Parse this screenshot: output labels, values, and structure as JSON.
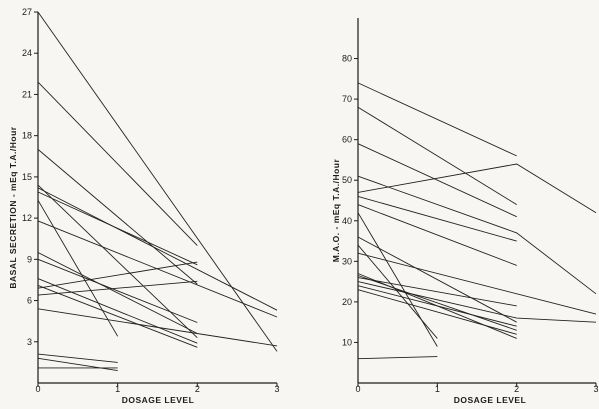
{
  "colors": {
    "background": "#f7f6f2",
    "ink": "#1c1c1c"
  },
  "chart_data": [
    {
      "type": "line",
      "xlabel": "DOSAGE    LEVEL",
      "ylabel": "BASAL  SECRETION  -  mEq T.A./Hour",
      "xlim": [
        0,
        3
      ],
      "ylim": [
        0,
        27
      ],
      "x_ticks": [
        "0",
        "1",
        "2",
        "3"
      ],
      "y_ticks": [
        "3",
        "6",
        "9",
        "12",
        "15",
        "18",
        "21",
        "24",
        "27"
      ],
      "grid": false,
      "series": [
        {
          "x": [
            0,
            3
          ],
          "y": [
            27,
            2.3
          ]
        },
        {
          "x": [
            0,
            2
          ],
          "y": [
            21.9,
            10
          ]
        },
        {
          "x": [
            0,
            2
          ],
          "y": [
            17,
            7.2
          ]
        },
        {
          "x": [
            0,
            2
          ],
          "y": [
            14.4,
            3.3
          ]
        },
        {
          "x": [
            0,
            3
          ],
          "y": [
            14.2,
            5.3
          ]
        },
        {
          "x": [
            0,
            2
          ],
          "y": [
            13.9,
            8.6
          ]
        },
        {
          "x": [
            0,
            1
          ],
          "y": [
            13.3,
            3.4
          ]
        },
        {
          "x": [
            0,
            3
          ],
          "y": [
            11.8,
            4.8
          ]
        },
        {
          "x": [
            0,
            2
          ],
          "y": [
            9.5,
            3.6
          ]
        },
        {
          "x": [
            0,
            2
          ],
          "y": [
            9,
            4.4
          ]
        },
        {
          "x": [
            0,
            2
          ],
          "y": [
            7.6,
            2.9
          ]
        },
        {
          "x": [
            0,
            2
          ],
          "y": [
            6.9,
            8.8
          ]
        },
        {
          "x": [
            0,
            2
          ],
          "y": [
            6.4,
            7.4
          ]
        },
        {
          "x": [
            0,
            2
          ],
          "y": [
            7.1,
            2.6
          ]
        },
        {
          "x": [
            0,
            3
          ],
          "y": [
            5.4,
            2.7
          ]
        },
        {
          "x": [
            0,
            1
          ],
          "y": [
            2.1,
            1.5
          ]
        },
        {
          "x": [
            0,
            1
          ],
          "y": [
            1.8,
            0.9
          ]
        },
        {
          "x": [
            0,
            1
          ],
          "y": [
            1.1,
            1.1
          ]
        }
      ]
    },
    {
      "type": "line",
      "xlabel": "DOSAGE    LEVEL",
      "ylabel": "M.A.O.  -  mEq T.A./Hour",
      "xlim": [
        0,
        3
      ],
      "ylim": [
        0,
        90
      ],
      "x_ticks": [
        "0",
        "1",
        "2",
        "3"
      ],
      "y_ticks": [
        "10",
        "20",
        "30",
        "40",
        "50",
        "60",
        "70",
        "80"
      ],
      "grid": false,
      "series": [
        {
          "x": [
            0,
            2
          ],
          "y": [
            74,
            56
          ]
        },
        {
          "x": [
            0,
            2
          ],
          "y": [
            68,
            44
          ]
        },
        {
          "x": [
            0,
            2
          ],
          "y": [
            59,
            41
          ]
        },
        {
          "x": [
            0,
            2,
            3
          ],
          "y": [
            47,
            54,
            42
          ]
        },
        {
          "x": [
            0,
            2,
            3
          ],
          "y": [
            51,
            37,
            22
          ]
        },
        {
          "x": [
            0,
            2
          ],
          "y": [
            46,
            35
          ]
        },
        {
          "x": [
            0,
            2
          ],
          "y": [
            44,
            29
          ]
        },
        {
          "x": [
            0,
            1
          ],
          "y": [
            42,
            9
          ]
        },
        {
          "x": [
            0,
            2
          ],
          "y": [
            36,
            15
          ]
        },
        {
          "x": [
            0,
            1
          ],
          "y": [
            34,
            11
          ]
        },
        {
          "x": [
            0,
            3
          ],
          "y": [
            32,
            17
          ]
        },
        {
          "x": [
            0,
            2
          ],
          "y": [
            27,
            11
          ]
        },
        {
          "x": [
            0,
            2
          ],
          "y": [
            26.5,
            13
          ]
        },
        {
          "x": [
            0,
            2
          ],
          "y": [
            26,
            19
          ]
        },
        {
          "x": [
            0,
            2,
            3
          ],
          "y": [
            25,
            16,
            15
          ]
        },
        {
          "x": [
            0,
            2
          ],
          "y": [
            24,
            14
          ]
        },
        {
          "x": [
            0,
            2
          ],
          "y": [
            23,
            12
          ]
        },
        {
          "x": [
            0,
            1
          ],
          "y": [
            6,
            6.5
          ]
        }
      ]
    }
  ]
}
